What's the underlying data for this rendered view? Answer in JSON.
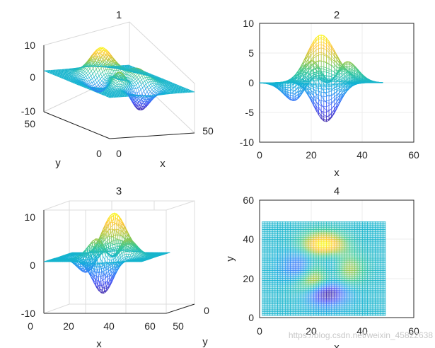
{
  "chart_data": [
    {
      "type": "surface",
      "title": "1",
      "view": "3d-default",
      "xlim": [
        0,
        50
      ],
      "ylim": [
        0,
        50
      ],
      "zlim": [
        -10,
        10
      ],
      "xticks": [
        "0",
        "50"
      ],
      "yticks": [
        "0",
        "50"
      ],
      "zticks": [
        "10",
        "0",
        "-10"
      ],
      "xlabel": "x",
      "ylabel": "y",
      "grid": "49x49 mesh of peaks function"
    },
    {
      "type": "surface",
      "title": "2",
      "view": "x-z side view",
      "xlim": [
        0,
        60
      ],
      "ylim": [
        -10,
        10
      ],
      "xticks": [
        "0",
        "20",
        "40",
        "60"
      ],
      "yticks": [
        "10",
        "5",
        "0",
        "-5",
        "-10"
      ],
      "xlabel": "x",
      "ylabel": ""
    },
    {
      "type": "surface",
      "title": "3",
      "view": "3d near x-z",
      "xlim": [
        0,
        60
      ],
      "ylim": [
        0,
        50
      ],
      "zlim": [
        -10,
        10
      ],
      "xticks": [
        "0",
        "20",
        "40",
        "60"
      ],
      "yticks": [
        "0",
        "50"
      ],
      "zticks": [
        "10",
        "0",
        "-10"
      ],
      "xlabel": "x",
      "ylabel": "y"
    },
    {
      "type": "surface",
      "title": "4",
      "view": "top view (x-y)",
      "xlim": [
        0,
        60
      ],
      "ylim": [
        0,
        60
      ],
      "xticks": [
        "0",
        "20",
        "40",
        "60"
      ],
      "yticks": [
        "60",
        "40",
        "20",
        "0"
      ],
      "xlabel": "x",
      "ylabel": "y"
    }
  ],
  "watermark": "https://blog.csdn.net/weixin_45822638"
}
